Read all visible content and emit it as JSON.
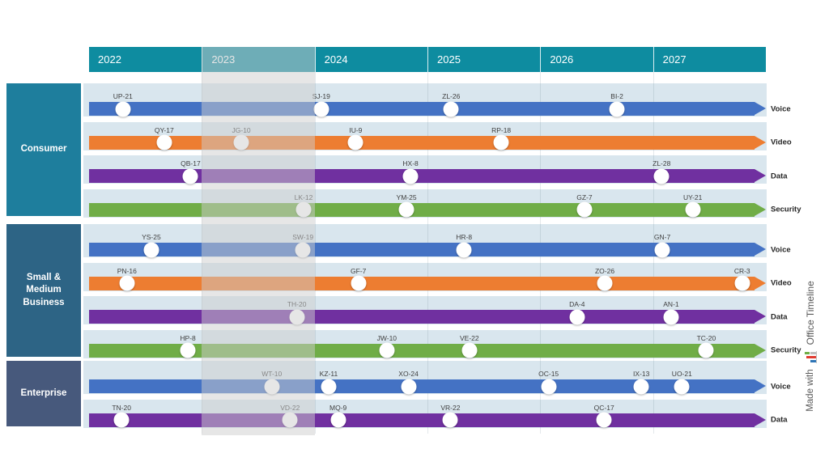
{
  "page": {
    "background": "#FFFFFF"
  },
  "watermark": {
    "prefix": "Made with",
    "brand": "Office Timeline",
    "text_color": "#595959",
    "icon": "bar-chart-logo",
    "icon_colors": {
      "blue": "#2E75B6",
      "red": "#E03C31",
      "green": "#70AD47",
      "gray": "#BFBFBF"
    }
  },
  "chart_data": {
    "type": "timeline",
    "title": "",
    "years": [
      "2022",
      "2023",
      "2024",
      "2025",
      "2026",
      "2027"
    ],
    "highlighted_year": "2023",
    "legend_position": "right-of-rows",
    "grid": "vertical-year-lines",
    "colors": {
      "header_bg": "#0E8CA0",
      "header_text": "#FFFFFF",
      "row_band_bg": "#D9E6EE",
      "gridline": "rgba(90,115,130,0.16)",
      "highlight_overlay": "rgba(206,206,206,0.5)",
      "milestone_label": "#3F3F3F",
      "row_label": "#262626",
      "milestone_fill": "#FFFFFF"
    },
    "lanes": [
      {
        "label": "Consumer",
        "color": "#1E7E9D",
        "rows": [
          {
            "label": "Voice",
            "color": "#4472C4",
            "milestones": [
              {
                "name": "UP-21",
                "pos": 0.05
              },
              {
                "name": "SJ-19",
                "pos": 0.343
              },
              {
                "name": "ZL-26",
                "pos": 0.535
              },
              {
                "name": "BI-2",
                "pos": 0.78
              }
            ]
          },
          {
            "label": "Video",
            "color": "#ED7D31",
            "milestones": [
              {
                "name": "QY-17",
                "pos": 0.111
              },
              {
                "name": "JG-10",
                "pos": 0.225
              },
              {
                "name": "IU-9",
                "pos": 0.394
              },
              {
                "name": "RP-18",
                "pos": 0.609
              }
            ]
          },
          {
            "label": "Data",
            "color": "#7030A0",
            "milestones": [
              {
                "name": "QB-17",
                "pos": 0.15
              },
              {
                "name": "HX-8",
                "pos": 0.475
              },
              {
                "name": "ZL-28",
                "pos": 0.846
              }
            ]
          },
          {
            "label": "Security",
            "color": "#70AD47",
            "milestones": [
              {
                "name": "LK-12",
                "pos": 0.317
              },
              {
                "name": "YM-25",
                "pos": 0.469
              },
              {
                "name": "GZ-7",
                "pos": 0.732
              },
              {
                "name": "UY-21",
                "pos": 0.892
              }
            ]
          }
        ]
      },
      {
        "label": "Small & Medium Business",
        "color": "#2D6485",
        "rows": [
          {
            "label": "Voice",
            "color": "#4472C4",
            "milestones": [
              {
                "name": "YS-25",
                "pos": 0.092
              },
              {
                "name": "SW-19",
                "pos": 0.316
              },
              {
                "name": "HR-8",
                "pos": 0.554
              },
              {
                "name": "GN-7",
                "pos": 0.847
              }
            ]
          },
          {
            "label": "Video",
            "color": "#ED7D31",
            "milestones": [
              {
                "name": "PN-16",
                "pos": 0.056
              },
              {
                "name": "GF-7",
                "pos": 0.398
              },
              {
                "name": "ZO-26",
                "pos": 0.762
              },
              {
                "name": "CR-3",
                "pos": 0.965
              }
            ]
          },
          {
            "label": "Data",
            "color": "#7030A0",
            "milestones": [
              {
                "name": "TH-20",
                "pos": 0.307
              },
              {
                "name": "DA-4",
                "pos": 0.721
              },
              {
                "name": "AN-1",
                "pos": 0.86
              }
            ]
          },
          {
            "label": "Security",
            "color": "#70AD47",
            "milestones": [
              {
                "name": "HP-8",
                "pos": 0.146
              },
              {
                "name": "JW-10",
                "pos": 0.44
              },
              {
                "name": "VE-22",
                "pos": 0.562
              },
              {
                "name": "TC-20",
                "pos": 0.912
              }
            ]
          }
        ]
      },
      {
        "label": "Enterprise",
        "color": "#47597C",
        "rows": [
          {
            "label": "Voice",
            "color": "#4472C4",
            "milestones": [
              {
                "name": "WT-10",
                "pos": 0.27
              },
              {
                "name": "KZ-11",
                "pos": 0.354
              },
              {
                "name": "XO-24",
                "pos": 0.472
              },
              {
                "name": "OC-15",
                "pos": 0.679
              },
              {
                "name": "IX-13",
                "pos": 0.816
              },
              {
                "name": "UO-21",
                "pos": 0.876
              }
            ]
          },
          {
            "label": "Data",
            "color": "#7030A0",
            "milestones": [
              {
                "name": "TN-20",
                "pos": 0.048
              },
              {
                "name": "VD-22",
                "pos": 0.297
              },
              {
                "name": "MQ-9",
                "pos": 0.368
              },
              {
                "name": "VR-22",
                "pos": 0.534
              },
              {
                "name": "QC-17",
                "pos": 0.761
              }
            ]
          }
        ]
      }
    ]
  }
}
